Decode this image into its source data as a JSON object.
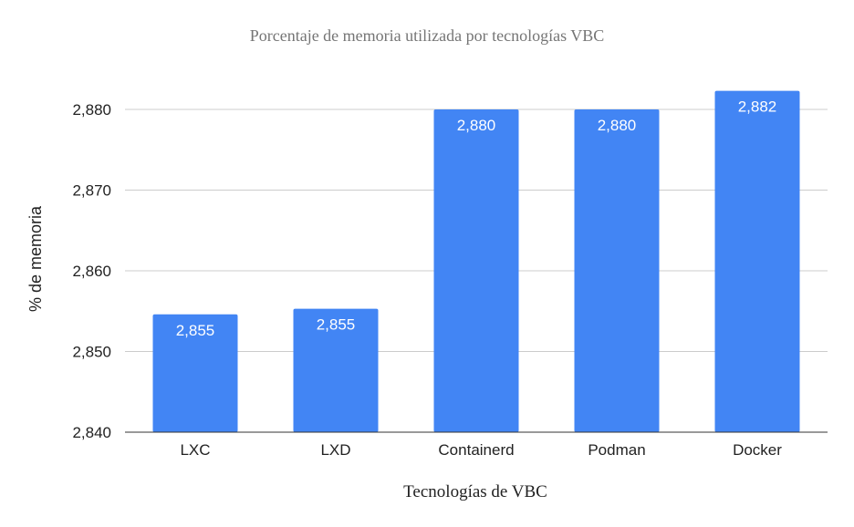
{
  "chart_data": {
    "type": "bar",
    "title": "Porcentaje de memoria utilizada por tecnologías VBC",
    "xlabel": "Tecnologías de VBC",
    "ylabel": "% de memoria",
    "categories": [
      "LXC",
      "LXD",
      "Containerd",
      "Podman",
      "Docker"
    ],
    "values": [
      2854.6,
      2855.3,
      2880.0,
      2880.0,
      2882.3
    ],
    "data_labels": [
      "2,855",
      "2,855",
      "2,880",
      "2,880",
      "2,882"
    ],
    "ylim": [
      2840,
      2880
    ],
    "yticks": [
      2840,
      2850,
      2860,
      2870,
      2880
    ],
    "ytick_labels": [
      "2,840",
      "2,850",
      "2,860",
      "2,870",
      "2,880"
    ],
    "grid": true,
    "legend": "none",
    "bar_color": "#4285f4"
  }
}
